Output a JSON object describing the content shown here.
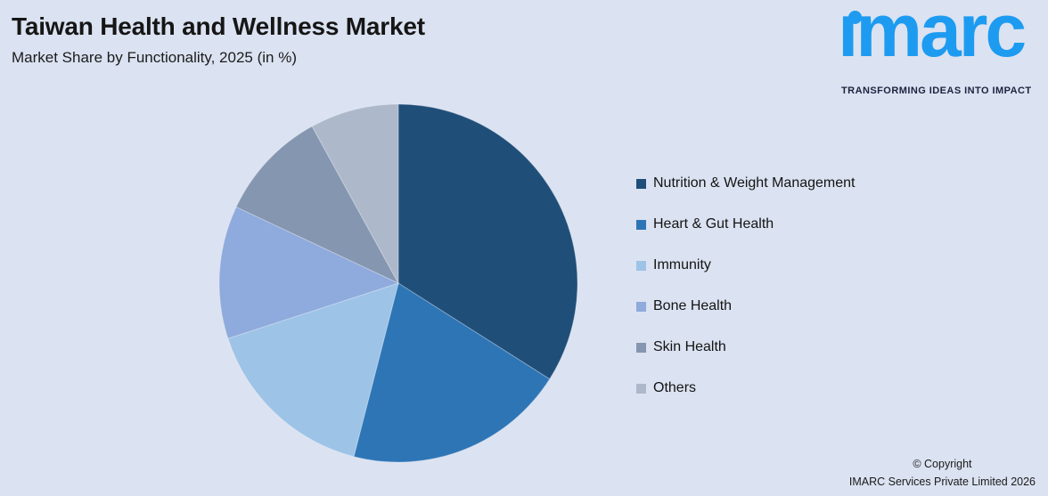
{
  "header": {
    "title": "Taiwan Health and Wellness Market",
    "subtitle": "Market Share by Functionality, 2025 (in %)"
  },
  "logo": {
    "display_text": "ımarc",
    "tagline": "TRANSFORMING IDEAS INTO IMPACT",
    "brand_color": "#1d9bf0"
  },
  "chart_data": {
    "type": "pie",
    "title": "Taiwan Health and Wellness Market",
    "subtitle": "Market Share by Functionality, 2025 (in %)",
    "unit": "%",
    "start_angle_deg": 0,
    "direction": "clockwise",
    "legend_position": "right",
    "slices": [
      {
        "label": "Nutrition & Weight Management",
        "value": 34,
        "color": "#1F4E79"
      },
      {
        "label": "Heart & Gut Health",
        "value": 20,
        "color": "#2E75B6"
      },
      {
        "label": "Immunity",
        "value": 16,
        "color": "#9DC3E6"
      },
      {
        "label": "Bone Health",
        "value": 12,
        "color": "#8FAADC"
      },
      {
        "label": "Skin Health",
        "value": 10,
        "color": "#8496B0"
      },
      {
        "label": "Others",
        "value": 8,
        "color": "#ADB9CA"
      }
    ]
  },
  "footer": {
    "copyright_line1": "© Copyright",
    "copyright_line2": "IMARC Services Private Limited 2026"
  }
}
